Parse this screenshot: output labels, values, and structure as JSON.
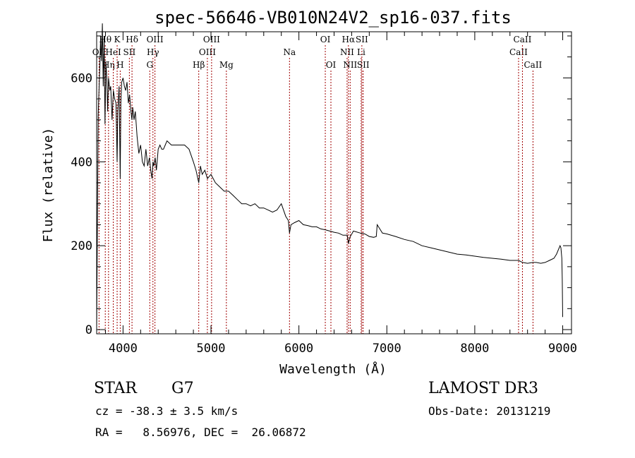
{
  "chart_data": {
    "type": "line",
    "title": "spec-56646-VB010N24V2_sp16-037.fits",
    "xlabel": "Wavelength (Å)",
    "ylabel": "Flux (relative)",
    "xlim": [
      3700,
      9100
    ],
    "ylim": [
      -10,
      710
    ],
    "x_ticks": [
      4000,
      5000,
      6000,
      7000,
      8000,
      9000
    ],
    "y_ticks": [
      0,
      200,
      400,
      600
    ],
    "x_tick_labels": [
      "4000",
      "5000",
      "6000",
      "7000",
      "8000",
      "9000"
    ],
    "y_tick_labels": [
      "0",
      "200",
      "400",
      "600"
    ],
    "grid": false,
    "series": [
      {
        "name": "spectrum",
        "x": [
          3700,
          3710,
          3718,
          3725,
          3735,
          3745,
          3755,
          3765,
          3775,
          3785,
          3795,
          3805,
          3815,
          3825,
          3835,
          3850,
          3860,
          3875,
          3890,
          3905,
          3920,
          3933,
          3940,
          3955,
          3968,
          3975,
          3985,
          4000,
          4015,
          4030,
          4045,
          4060,
          4075,
          4090,
          4101,
          4110,
          4125,
          4140,
          4160,
          4180,
          4200,
          4220,
          4240,
          4260,
          4280,
          4300,
          4315,
          4330,
          4340,
          4350,
          4365,
          4380,
          4400,
          4420,
          4440,
          4460,
          4480,
          4500,
          4550,
          4600,
          4650,
          4700,
          4750,
          4800,
          4830,
          4861,
          4880,
          4900,
          4930,
          4960,
          5000,
          5050,
          5100,
          5150,
          5200,
          5250,
          5300,
          5350,
          5400,
          5450,
          5500,
          5550,
          5600,
          5650,
          5700,
          5750,
          5800,
          5850,
          5880,
          5893,
          5910,
          5950,
          6000,
          6050,
          6100,
          6150,
          6200,
          6250,
          6300,
          6350,
          6400,
          6450,
          6500,
          6550,
          6563,
          6580,
          6620,
          6700,
          6750,
          6800,
          6850,
          6880,
          6890,
          6950,
          7000,
          7100,
          7200,
          7300,
          7400,
          7500,
          7600,
          7700,
          7800,
          7900,
          8000,
          8100,
          8200,
          8300,
          8400,
          8498,
          8542,
          8600,
          8662,
          8700,
          8750,
          8800,
          8850,
          8900,
          8930,
          8950,
          8970,
          8980,
          8990,
          8995,
          9000
        ],
        "y": [
          0,
          290,
          510,
          560,
          620,
          700,
          640,
          730,
          580,
          700,
          490,
          640,
          600,
          520,
          600,
          570,
          580,
          500,
          570,
          550,
          540,
          400,
          520,
          580,
          360,
          540,
          590,
          600,
          580,
          570,
          590,
          540,
          560,
          520,
          500,
          530,
          500,
          520,
          460,
          420,
          440,
          400,
          390,
          430,
          390,
          410,
          380,
          360,
          400,
          390,
          410,
          380,
          430,
          440,
          430,
          430,
          440,
          450,
          440,
          440,
          440,
          440,
          430,
          400,
          380,
          350,
          390,
          370,
          380,
          360,
          370,
          350,
          340,
          330,
          330,
          320,
          310,
          300,
          300,
          295,
          300,
          290,
          290,
          285,
          280,
          285,
          300,
          270,
          260,
          230,
          250,
          255,
          260,
          250,
          248,
          245,
          245,
          240,
          238,
          235,
          232,
          230,
          225,
          225,
          205,
          220,
          235,
          230,
          228,
          222,
          220,
          222,
          250,
          230,
          228,
          222,
          215,
          210,
          200,
          195,
          190,
          185,
          180,
          178,
          175,
          172,
          170,
          168,
          165,
          165,
          160,
          158,
          160,
          160,
          158,
          160,
          165,
          170,
          180,
          190,
          200,
          195,
          170,
          120,
          30
        ]
      }
    ],
    "emission_lines": [
      {
        "name": "OII",
        "wavelength": 3727,
        "row": 2
      },
      {
        "name": "Hθ",
        "wavelength": 3798,
        "row": 1
      },
      {
        "name": "Hη",
        "wavelength": 3835,
        "row": 3
      },
      {
        "name": "HeI",
        "wavelength": 3889,
        "row": 2
      },
      {
        "name": "K",
        "wavelength": 3933,
        "row": 1
      },
      {
        "name": "H",
        "wavelength": 3968,
        "row": 3
      },
      {
        "name": "SII",
        "wavelength": 4072,
        "row": 2
      },
      {
        "name": "Hδ",
        "wavelength": 4102,
        "row": 1
      },
      {
        "name": "G",
        "wavelength": 4304,
        "row": 3
      },
      {
        "name": "Hγ",
        "wavelength": 4340,
        "row": 2
      },
      {
        "name": "OIII",
        "wavelength": 4363,
        "row": 1
      },
      {
        "name": "Hβ",
        "wavelength": 4861,
        "row": 3
      },
      {
        "name": "OIII",
        "wavelength": 4959,
        "row": 2
      },
      {
        "name": "OIII",
        "wavelength": 5007,
        "row": 1
      },
      {
        "name": "Mg",
        "wavelength": 5175,
        "row": 3
      },
      {
        "name": "Na",
        "wavelength": 5893,
        "row": 2
      },
      {
        "name": "OI",
        "wavelength": 6300,
        "row": 1
      },
      {
        "name": "OI",
        "wavelength": 6364,
        "row": 3
      },
      {
        "name": "NII",
        "wavelength": 6548,
        "row": 2
      },
      {
        "name": "Hα",
        "wavelength": 6563,
        "row": 1
      },
      {
        "name": "NII",
        "wavelength": 6583,
        "row": 3
      },
      {
        "name": "Li",
        "wavelength": 6708,
        "row": 2
      },
      {
        "name": "SII",
        "wavelength": 6716,
        "row": 1
      },
      {
        "name": "SII",
        "wavelength": 6731,
        "row": 3
      },
      {
        "name": "CaII",
        "wavelength": 8498,
        "row": 2
      },
      {
        "name": "CaII",
        "wavelength": 8542,
        "row": 1
      },
      {
        "name": "CaII",
        "wavelength": 8662,
        "row": 3
      }
    ],
    "colors": {
      "spectrum": "#000000",
      "lines": "#a00000",
      "axes": "#000000"
    }
  },
  "info": {
    "object_class": "STAR",
    "subclass": "G7",
    "redshift": "cz = -38.3 ± 3.5 km/s",
    "coords": "RA =   8.56976, DEC =  26.06872",
    "survey": "LAMOST DR3",
    "obs_date": "Obs-Date: 20131219"
  }
}
